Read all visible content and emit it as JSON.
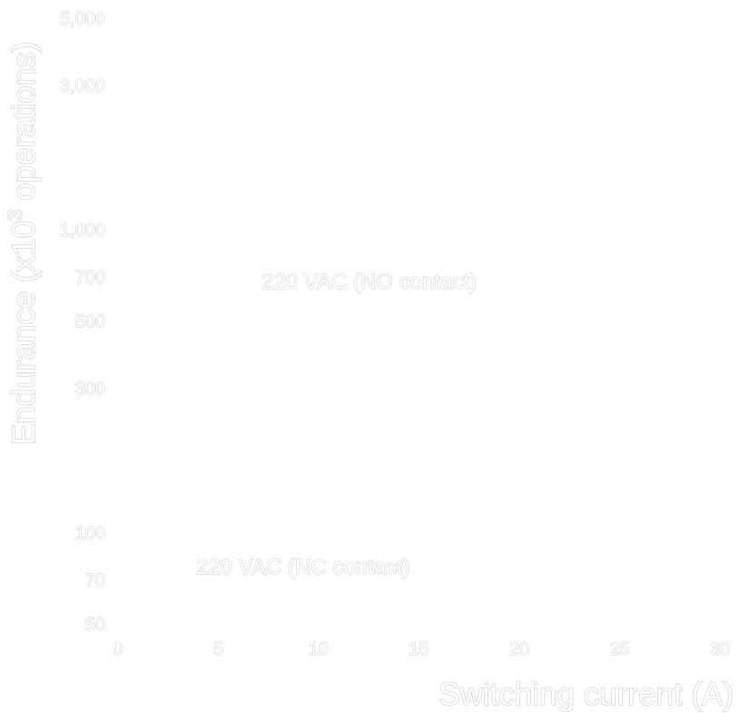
{
  "chart_data": {
    "type": "line",
    "xlabel": "Switching current (A)",
    "ylabel_parts": {
      "base": "Endurance (x10",
      "sup": "3",
      "tail": " operations)"
    },
    "x_ticks": [
      "0",
      "5",
      "10",
      "15",
      "20",
      "25",
      "30"
    ],
    "y_ticks": [
      "50",
      "70",
      "100",
      "300",
      "500",
      "700",
      "1,000",
      "3,000",
      "5,000"
    ],
    "xlim": [
      0,
      30
    ],
    "ylim": [
      50,
      5000
    ],
    "y_scale": "log",
    "grid": false,
    "series": [
      {
        "name": "220 VAC (NO contact)",
        "values": []
      },
      {
        "name": "220 VAC (NC contact)",
        "values": []
      }
    ]
  }
}
